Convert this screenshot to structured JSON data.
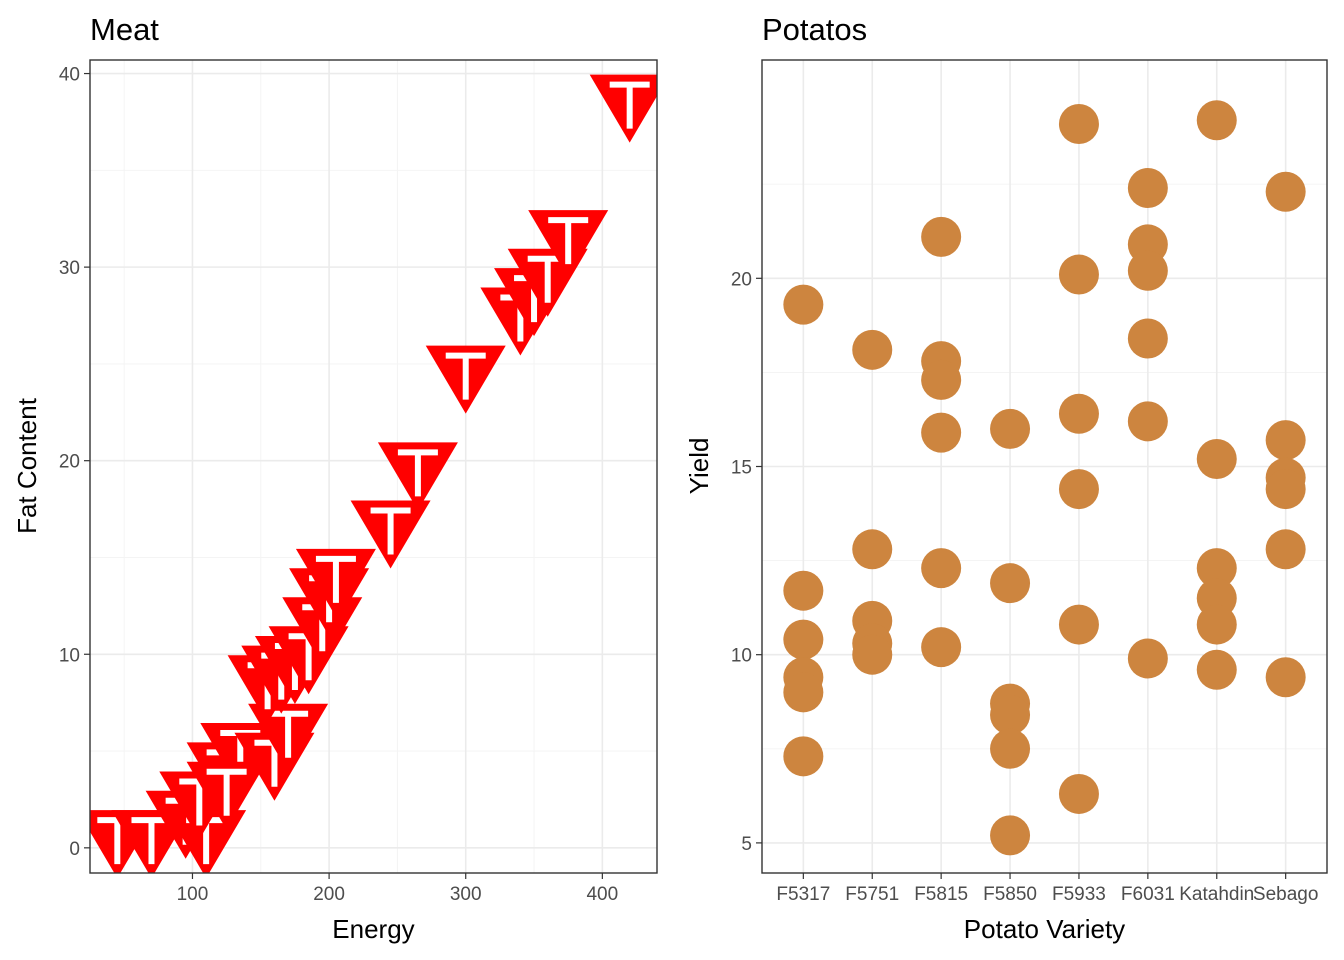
{
  "chart_data": [
    {
      "type": "scatter",
      "title": "Meat",
      "xlabel": "Energy",
      "ylabel": "Fat Content",
      "xlim": [
        25,
        440
      ],
      "ylim": [
        -1.3,
        40.7
      ],
      "x_ticks": [
        100,
        200,
        300,
        400
      ],
      "y_ticks": [
        0,
        10,
        20,
        30,
        40
      ],
      "grid": true,
      "marker": "red downward triangle with white T glyph",
      "marker_color": "#ff0000",
      "glyph_color": "#ffffff",
      "glyph": "T",
      "series": [
        {
          "points": [
            {
              "x": 45,
              "y": 0.5
            },
            {
              "x": 70,
              "y": 0.5
            },
            {
              "x": 95,
              "y": 1.5
            },
            {
              "x": 110,
              "y": 0.5
            },
            {
              "x": 105,
              "y": 2.5
            },
            {
              "x": 125,
              "y": 4.0
            },
            {
              "x": 135,
              "y": 5.0
            },
            {
              "x": 125,
              "y": 3.0
            },
            {
              "x": 160,
              "y": 4.5
            },
            {
              "x": 170,
              "y": 6.0
            },
            {
              "x": 155,
              "y": 8.5
            },
            {
              "x": 165,
              "y": 9.0
            },
            {
              "x": 175,
              "y": 9.5
            },
            {
              "x": 185,
              "y": 10.0
            },
            {
              "x": 195,
              "y": 11.5
            },
            {
              "x": 200,
              "y": 13.0
            },
            {
              "x": 205,
              "y": 14.0
            },
            {
              "x": 245,
              "y": 16.5
            },
            {
              "x": 265,
              "y": 19.5
            },
            {
              "x": 300,
              "y": 24.5
            },
            {
              "x": 340,
              "y": 27.5
            },
            {
              "x": 350,
              "y": 28.5
            },
            {
              "x": 360,
              "y": 29.5
            },
            {
              "x": 375,
              "y": 31.5
            },
            {
              "x": 420,
              "y": 38.5
            }
          ]
        }
      ]
    },
    {
      "type": "scatter",
      "title": "Potatos",
      "xlabel": "Potato Variety",
      "ylabel": "Yield",
      "categories": [
        "F5317",
        "F5751",
        "F5815",
        "F5850",
        "F5933",
        "F6031",
        "Katahdin",
        "Sebago"
      ],
      "ylim": [
        4.2,
        25.8
      ],
      "y_ticks": [
        5,
        10,
        15,
        20
      ],
      "grid": true,
      "point_color": "#cd853f",
      "series": [
        {
          "points": [
            {
              "x": "F5317",
              "y": 19.3
            },
            {
              "x": "F5317",
              "y": 11.7
            },
            {
              "x": "F5317",
              "y": 10.4
            },
            {
              "x": "F5317",
              "y": 9.4
            },
            {
              "x": "F5317",
              "y": 9.0
            },
            {
              "x": "F5317",
              "y": 7.3
            },
            {
              "x": "F5751",
              "y": 18.1
            },
            {
              "x": "F5751",
              "y": 12.8
            },
            {
              "x": "F5751",
              "y": 10.9
            },
            {
              "x": "F5751",
              "y": 10.3
            },
            {
              "x": "F5751",
              "y": 10.0
            },
            {
              "x": "F5815",
              "y": 21.1
            },
            {
              "x": "F5815",
              "y": 17.8
            },
            {
              "x": "F5815",
              "y": 17.3
            },
            {
              "x": "F5815",
              "y": 15.9
            },
            {
              "x": "F5815",
              "y": 12.3
            },
            {
              "x": "F5815",
              "y": 10.2
            },
            {
              "x": "F5850",
              "y": 16.0
            },
            {
              "x": "F5850",
              "y": 11.9
            },
            {
              "x": "F5850",
              "y": 8.7
            },
            {
              "x": "F5850",
              "y": 8.4
            },
            {
              "x": "F5850",
              "y": 7.5
            },
            {
              "x": "F5850",
              "y": 5.2
            },
            {
              "x": "F5933",
              "y": 24.1
            },
            {
              "x": "F5933",
              "y": 20.1
            },
            {
              "x": "F5933",
              "y": 16.4
            },
            {
              "x": "F5933",
              "y": 14.4
            },
            {
              "x": "F5933",
              "y": 10.8
            },
            {
              "x": "F5933",
              "y": 6.3
            },
            {
              "x": "F6031",
              "y": 22.4
            },
            {
              "x": "F6031",
              "y": 20.9
            },
            {
              "x": "F6031",
              "y": 20.2
            },
            {
              "x": "F6031",
              "y": 18.4
            },
            {
              "x": "F6031",
              "y": 16.2
            },
            {
              "x": "F6031",
              "y": 9.9
            },
            {
              "x": "Katahdin",
              "y": 24.2
            },
            {
              "x": "Katahdin",
              "y": 15.2
            },
            {
              "x": "Katahdin",
              "y": 12.3
            },
            {
              "x": "Katahdin",
              "y": 11.5
            },
            {
              "x": "Katahdin",
              "y": 10.8
            },
            {
              "x": "Katahdin",
              "y": 9.6
            },
            {
              "x": "Sebago",
              "y": 22.3
            },
            {
              "x": "Sebago",
              "y": 15.7
            },
            {
              "x": "Sebago",
              "y": 14.7
            },
            {
              "x": "Sebago",
              "y": 14.4
            },
            {
              "x": "Sebago",
              "y": 12.8
            },
            {
              "x": "Sebago",
              "y": 9.4
            }
          ]
        }
      ]
    }
  ]
}
